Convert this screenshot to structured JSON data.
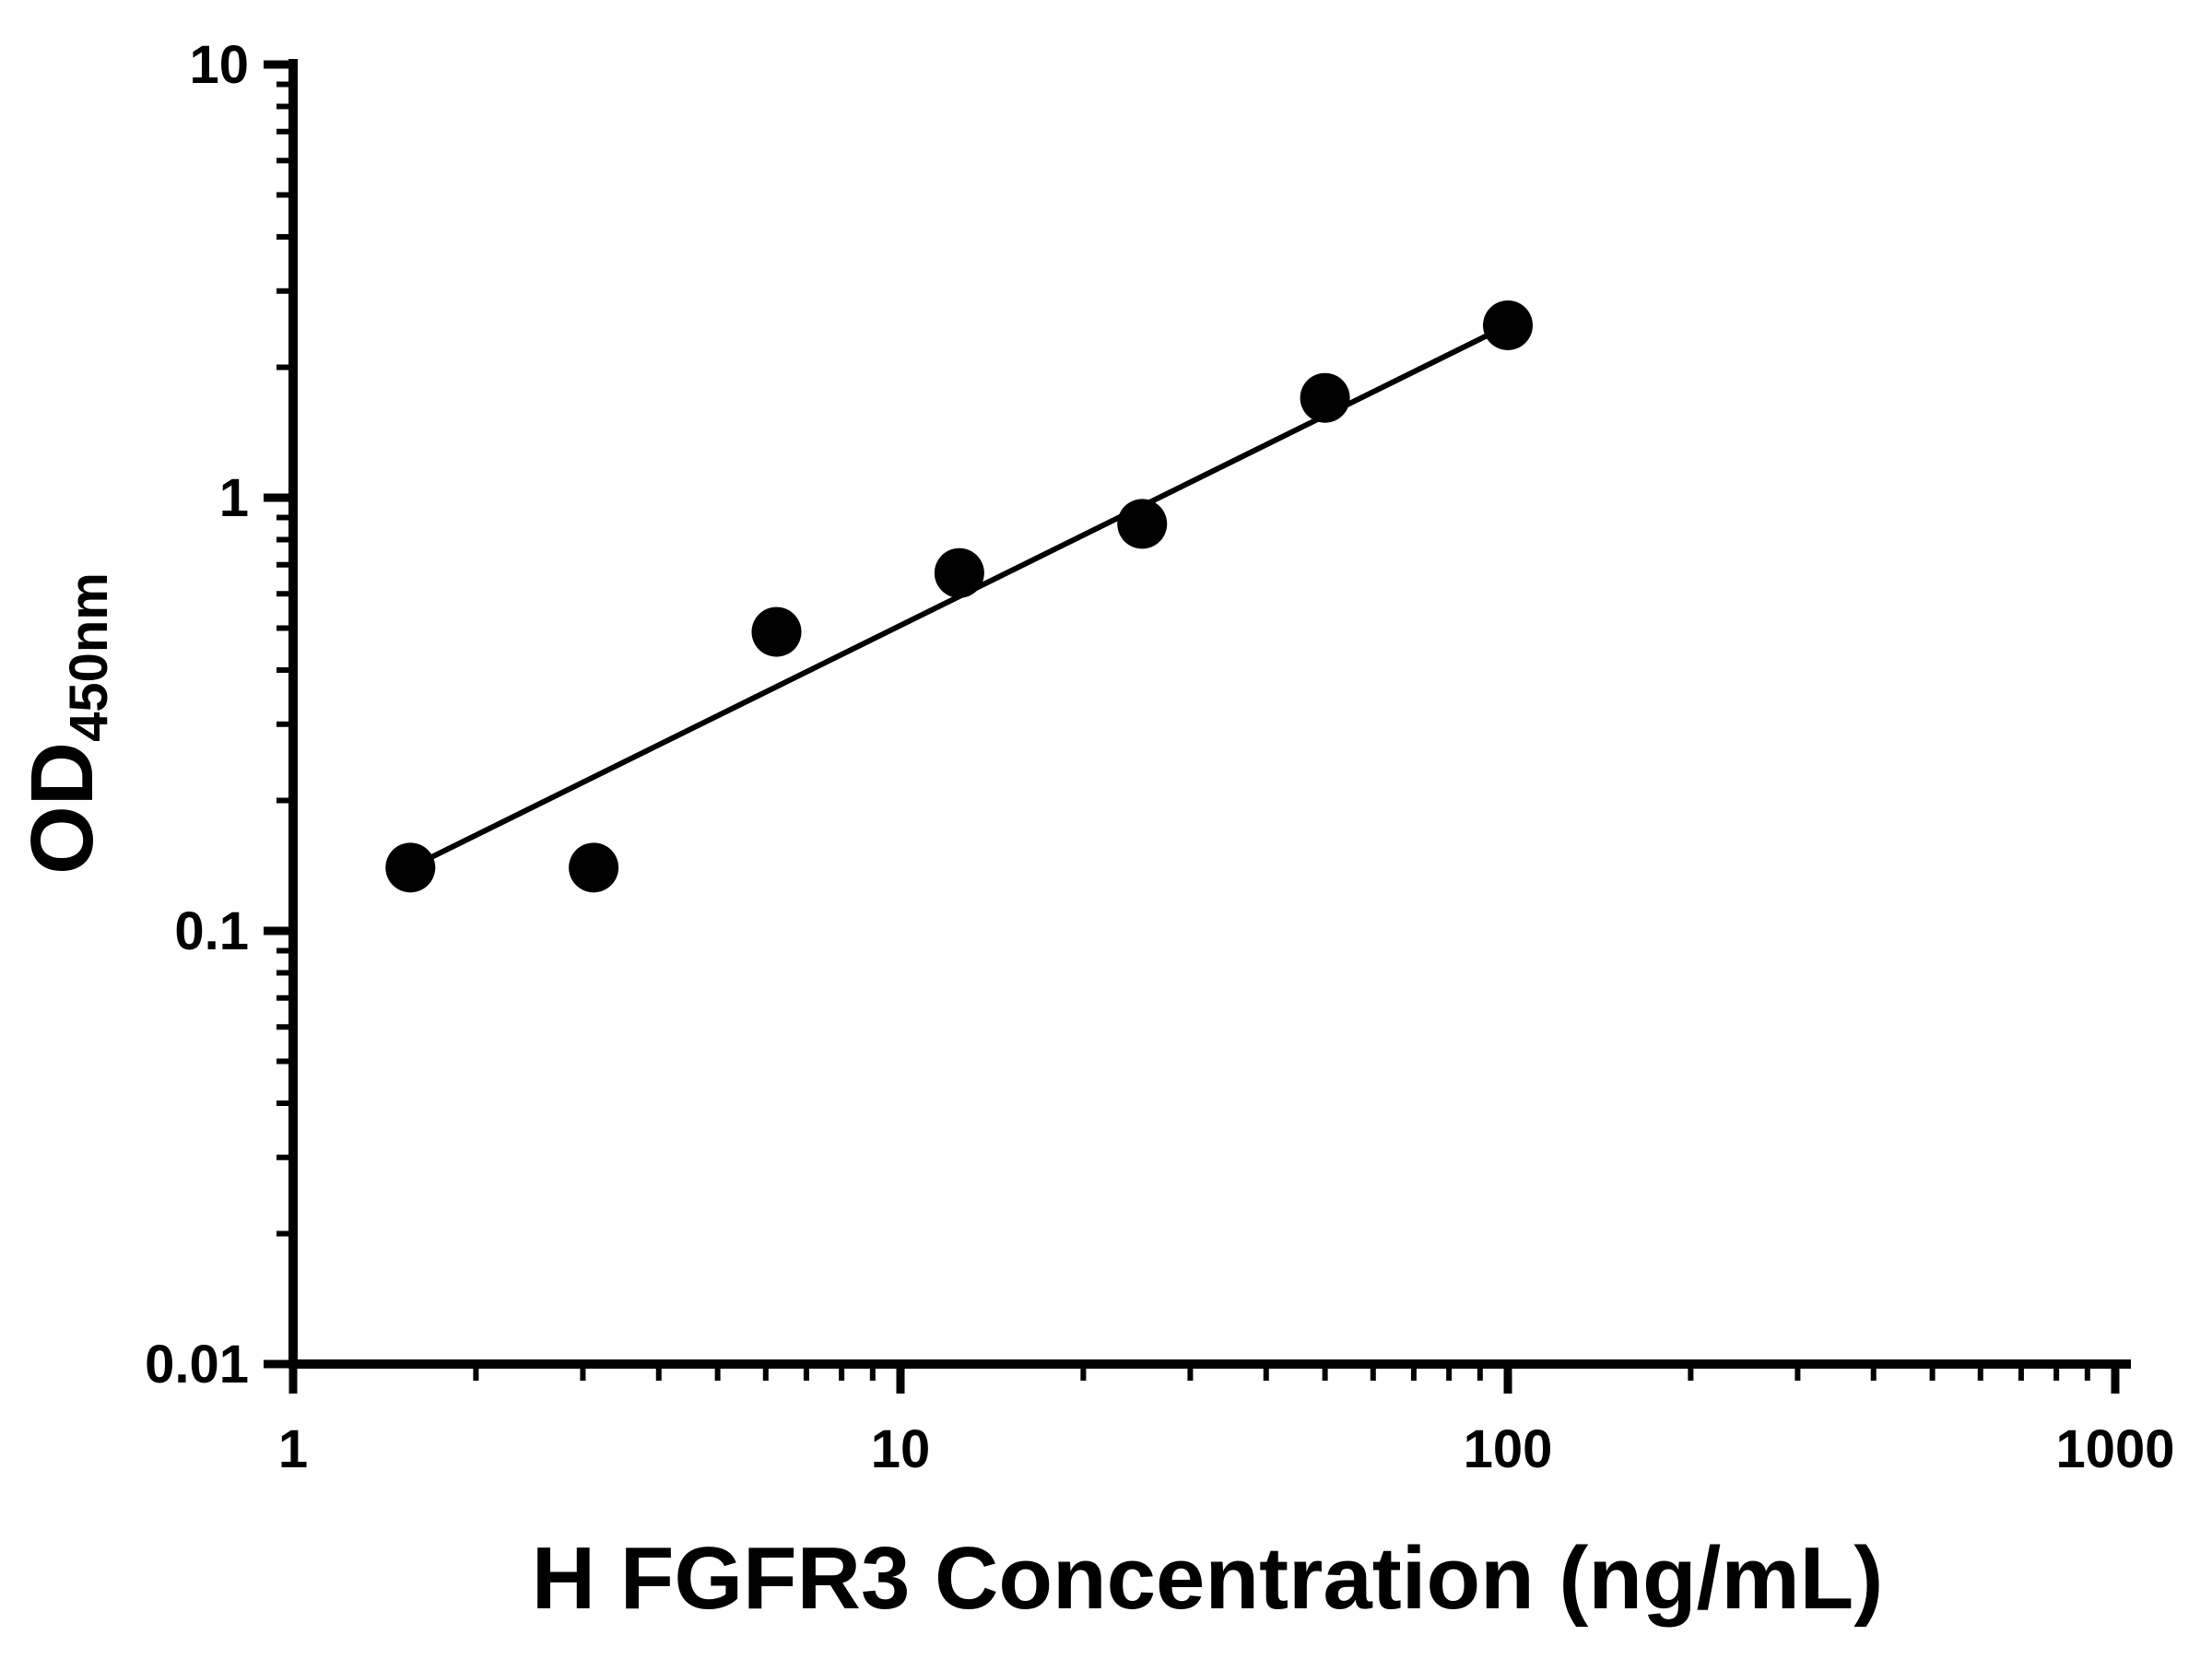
{
  "colors": {
    "background": "#ffffff",
    "foreground": "#000000"
  },
  "chart_data": {
    "type": "scatter",
    "xlabel": "H FGFR3 Concentration (ng/mL)",
    "ylabel_main": "OD",
    "ylabel_sub": "450nm",
    "x_scale": "log",
    "y_scale": "log",
    "xlim": [
      1,
      1000
    ],
    "ylim": [
      0.01,
      10
    ],
    "grid": false,
    "legend": "none",
    "minor_ticks": true,
    "x_ticks": [
      {
        "value": 1,
        "label": "1"
      },
      {
        "value": 10,
        "label": "10"
      },
      {
        "value": 100,
        "label": "100"
      },
      {
        "value": 1000,
        "label": "1000"
      }
    ],
    "y_ticks": [
      {
        "value": 0.01,
        "label": "0.01"
      },
      {
        "value": 0.1,
        "label": "0.1"
      },
      {
        "value": 1,
        "label": "1"
      },
      {
        "value": 10,
        "label": "10"
      }
    ],
    "points": [
      {
        "x": 1.56,
        "y": 0.14
      },
      {
        "x": 3.125,
        "y": 0.14
      },
      {
        "x": 6.25,
        "y": 0.49
      },
      {
        "x": 12.5,
        "y": 0.67
      },
      {
        "x": 25,
        "y": 0.87
      },
      {
        "x": 50,
        "y": 1.7
      },
      {
        "x": 100,
        "y": 2.5
      }
    ],
    "trend_line": {
      "x_start": 1.56,
      "y_start": 0.14,
      "x_end": 100,
      "y_end": 2.5
    },
    "marker": {
      "shape": "circle",
      "radius_px": 27,
      "color": "#000000"
    }
  }
}
